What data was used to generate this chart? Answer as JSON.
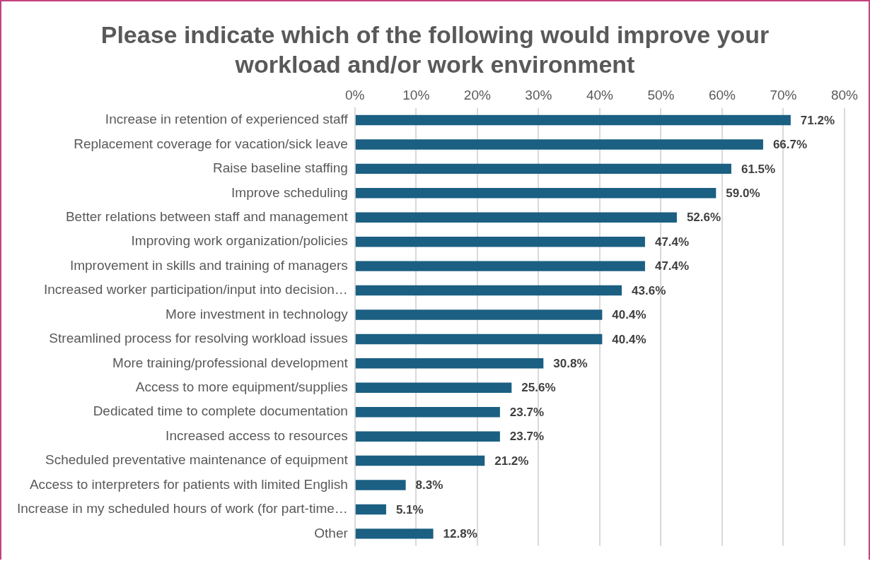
{
  "chart_data": {
    "type": "bar",
    "orientation": "horizontal",
    "title": "Please indicate which of the following would improve your workload and/or work environment",
    "categories": [
      "Increase in retention of experienced staff",
      "Replacement coverage for vacation/sick leave",
      "Raise baseline staffing",
      "Improve scheduling",
      "Better relations between staff and management",
      "Improving work organization/policies",
      "Improvement in skills and training of managers",
      "Increased worker participation/input into decision…",
      "More investment in technology",
      "Streamlined process for resolving workload issues",
      "More training/professional development",
      "Access to more equipment/supplies",
      "Dedicated time to complete documentation",
      "Increased access to resources",
      "Scheduled preventative maintenance of equipment",
      "Access to interpreters for patients with limited English",
      "Increase in my scheduled hours of work (for part-time…",
      "Other"
    ],
    "values": [
      71.2,
      66.7,
      61.5,
      59.0,
      52.6,
      47.4,
      47.4,
      43.6,
      40.4,
      40.4,
      30.8,
      25.6,
      23.7,
      23.7,
      21.2,
      8.3,
      5.1,
      12.8
    ],
    "value_labels": [
      "71.2%",
      "66.7%",
      "61.5%",
      "59.0%",
      "52.6%",
      "47.4%",
      "47.4%",
      "43.6%",
      "40.4%",
      "40.4%",
      "30.8%",
      "25.6%",
      "23.7%",
      "23.7%",
      "21.2%",
      "8.3%",
      "5.1%",
      "12.8%"
    ],
    "color": "#1b5f82",
    "xlim": [
      0,
      80
    ],
    "xticks": [
      {
        "value": 0,
        "label": "0%"
      },
      {
        "value": 10,
        "label": "10%"
      },
      {
        "value": 20,
        "label": "20%"
      },
      {
        "value": 30,
        "label": "30%"
      },
      {
        "value": 40,
        "label": "40%"
      },
      {
        "value": 50,
        "label": "50%"
      },
      {
        "value": 60,
        "label": "60%"
      },
      {
        "value": 70,
        "label": "70%"
      },
      {
        "value": 80,
        "label": "80%"
      }
    ],
    "grid": "x",
    "legend": false
  }
}
